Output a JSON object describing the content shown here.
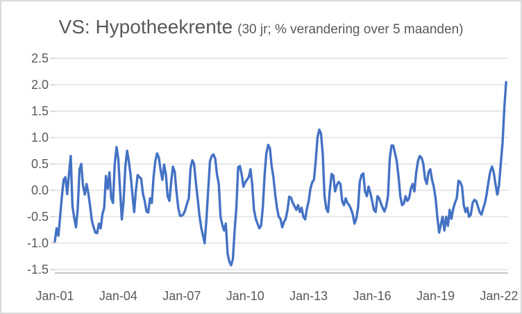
{
  "title": {
    "main": "VS: Hypotheekrente",
    "sub": "(30 jr; % verandering over 5 maanden)"
  },
  "chart_data": {
    "type": "line",
    "title": "VS: Hypotheekrente (30 jr; % verandering over 5 maanden)",
    "subtitle_note": "30-year US mortgage rate, % change over 5 months",
    "frequency": "monthly",
    "x_start": "Jan-01",
    "x_end": "May-22",
    "x_tick_labels": [
      "Jan-01",
      "Jan-04",
      "Jan-07",
      "Jan-10",
      "Jan-13",
      "Jan-16",
      "Jan-19",
      "Jan-22"
    ],
    "months_between_ticks": 36,
    "y_tick_labels": [
      "2.5",
      "2.0",
      "1.5",
      "1.0",
      "0.5",
      "0.0",
      "-0.5",
      "-1.0",
      "-1.5"
    ],
    "ylim": [
      -1.57,
      2.6
    ],
    "grid": "horizontal",
    "legend": "none",
    "series": [
      {
        "name": "Hypotheekrente 30jr, % verandering over 5 maanden",
        "start": "2001-01",
        "values": [
          -0.97,
          -0.72,
          -0.86,
          -0.5,
          -0.11,
          0.2,
          0.25,
          -0.07,
          0.3,
          0.65,
          -0.3,
          -0.52,
          -0.7,
          -0.34,
          0.4,
          0.5,
          0.09,
          -0.08,
          0.12,
          -0.05,
          -0.3,
          -0.57,
          -0.7,
          -0.8,
          -0.81,
          -0.63,
          -0.72,
          -0.45,
          -0.33,
          0.27,
          0.03,
          0.34,
          -0.15,
          -0.24,
          0.5,
          0.82,
          0.6,
          0.0,
          -0.55,
          -0.2,
          0.45,
          0.75,
          0.55,
          0.29,
          -0.07,
          -0.41,
          0.0,
          0.29,
          0.25,
          0.22,
          -0.07,
          -0.2,
          -0.4,
          -0.42,
          -0.15,
          -0.24,
          0.25,
          0.55,
          0.7,
          0.62,
          0.38,
          0.2,
          0.49,
          0.3,
          -0.11,
          -0.2,
          0.16,
          0.45,
          0.35,
          -0.02,
          -0.33,
          -0.48,
          -0.48,
          -0.45,
          -0.37,
          -0.25,
          -0.15,
          0.42,
          0.57,
          0.5,
          0.16,
          -0.15,
          -0.46,
          -0.7,
          -0.85,
          -1.0,
          -0.55,
          0.0,
          0.55,
          0.65,
          0.68,
          0.6,
          0.3,
          0.12,
          -0.5,
          -0.65,
          -0.76,
          -0.63,
          -1.2,
          -1.35,
          -1.42,
          -1.3,
          -0.76,
          -0.33,
          0.44,
          0.46,
          0.3,
          0.07,
          0.15,
          0.2,
          0.25,
          0.4,
          0.1,
          -0.37,
          -0.54,
          -0.63,
          -0.72,
          -0.67,
          -0.33,
          0.29,
          0.7,
          0.86,
          0.8,
          0.46,
          0.25,
          -0.07,
          -0.33,
          -0.5,
          -0.54,
          -0.7,
          -0.6,
          -0.54,
          -0.37,
          -0.12,
          -0.14,
          -0.24,
          -0.3,
          -0.37,
          -0.28,
          -0.41,
          -0.33,
          -0.5,
          -0.55,
          -0.35,
          -0.2,
          0.03,
          0.15,
          0.2,
          0.55,
          1.0,
          1.15,
          1.08,
          0.68,
          -0.11,
          -0.35,
          -0.41,
          0.0,
          0.31,
          0.28,
          -0.02,
          0.1,
          0.16,
          0.12,
          -0.2,
          -0.28,
          -0.15,
          -0.24,
          -0.28,
          -0.35,
          -0.45,
          -0.63,
          -0.54,
          -0.33,
          0.16,
          0.29,
          0.32,
          -0.02,
          -0.11,
          0.07,
          -0.05,
          -0.2,
          -0.37,
          -0.41,
          -0.11,
          -0.15,
          -0.25,
          -0.33,
          -0.4,
          -0.3,
          -0.11,
          0.6,
          0.85,
          0.85,
          0.7,
          0.55,
          0.25,
          -0.11,
          -0.28,
          -0.25,
          -0.11,
          -0.2,
          -0.15,
          0.03,
          0.12,
          -0.02,
          0.34,
          0.55,
          0.65,
          0.62,
          0.51,
          0.22,
          0.12,
          0.34,
          0.4,
          0.2,
          0.07,
          -0.15,
          -0.5,
          -0.8,
          -0.65,
          -0.5,
          -0.76,
          -0.5,
          -0.67,
          -0.37,
          -0.54,
          -0.35,
          -0.24,
          -0.15,
          0.18,
          0.16,
          0.07,
          -0.28,
          -0.41,
          -0.33,
          -0.5,
          -0.46,
          -0.24,
          -0.18,
          -0.2,
          -0.3,
          -0.41,
          -0.46,
          -0.35,
          -0.24,
          -0.07,
          0.16,
          0.35,
          0.45,
          0.34,
          0.12,
          -0.08,
          0.1,
          0.5,
          0.9,
          1.55,
          2.05
        ]
      }
    ],
    "line_color": "#4472C4"
  },
  "colors": {
    "line": "#4472C4",
    "gridline": "#D9D9D9",
    "axis": "#C4C4C4",
    "tick": "#BFBFBF",
    "text": "#595959",
    "border": "#D9D9D9"
  }
}
